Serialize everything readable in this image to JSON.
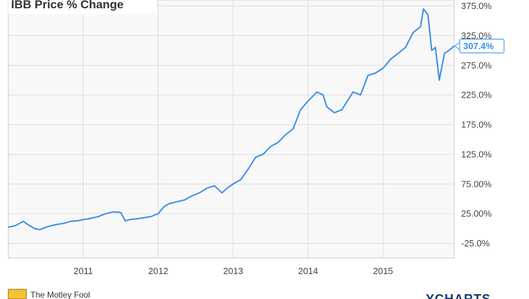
{
  "chart_data": {
    "type": "line",
    "title": "IBB Price % Change",
    "xlabel": "",
    "ylabel": "",
    "x_tick_labels": [
      "2011",
      "2012",
      "2013",
      "2014",
      "2015"
    ],
    "x_ticks": [
      2011.0,
      2012.0,
      2013.0,
      2014.0,
      2015.0
    ],
    "xlim": [
      2010.0,
      2015.95
    ],
    "y_tick_labels": [
      "-25.0%",
      "25.00%",
      "75.00%",
      "125.0%",
      "175.0%",
      "225.0%",
      "275.0%",
      "325.0%",
      "375.0%"
    ],
    "y_ticks": [
      -25,
      25,
      75,
      125,
      175,
      225,
      275,
      325,
      375
    ],
    "ylim": [
      -50,
      385
    ],
    "grid": true,
    "series": [
      {
        "x": [
          2010.0,
          2010.1,
          2010.2,
          2010.28,
          2010.35,
          2010.42,
          2010.5,
          2010.58,
          2010.66,
          2010.75,
          2010.83,
          2010.92,
          2011.0,
          2011.1,
          2011.2,
          2011.3,
          2011.4,
          2011.5,
          2011.56,
          2011.62,
          2011.7,
          2011.8,
          2011.9,
          2012.0,
          2012.08,
          2012.15,
          2012.25,
          2012.35,
          2012.45,
          2012.55,
          2012.65,
          2012.75,
          2012.85,
          2012.92,
          2013.0,
          2013.1,
          2013.2,
          2013.3,
          2013.4,
          2013.5,
          2013.6,
          2013.7,
          2013.8,
          2013.9,
          2014.0,
          2014.08,
          2014.12,
          2014.2,
          2014.25,
          2014.35,
          2014.45,
          2014.55,
          2014.6,
          2014.7,
          2014.8,
          2014.9,
          2015.0,
          2015.1,
          2015.2,
          2015.3,
          2015.4,
          2015.5,
          2015.54,
          2015.6,
          2015.65,
          2015.7,
          2015.75,
          2015.82,
          2015.88,
          2015.95
        ],
        "values": [
          2,
          5,
          12,
          5,
          0,
          -2,
          2,
          5,
          7,
          9,
          12,
          13,
          15,
          17,
          20,
          25,
          28,
          27,
          13,
          15,
          16,
          18,
          20,
          25,
          37,
          42,
          45,
          48,
          55,
          60,
          68,
          72,
          60,
          68,
          75,
          82,
          100,
          120,
          125,
          138,
          145,
          158,
          168,
          200,
          215,
          225,
          230,
          225,
          205,
          195,
          200,
          220,
          230,
          225,
          258,
          262,
          270,
          285,
          295,
          305,
          330,
          340,
          370,
          360,
          300,
          305,
          250,
          295,
          300,
          307.4
        ]
      }
    ],
    "last_value_label": "307.4%",
    "line_color": "#3a8ee6",
    "footer": {
      "logo_text": "The Motley Fool",
      "brand": "YCHARTS"
    }
  }
}
